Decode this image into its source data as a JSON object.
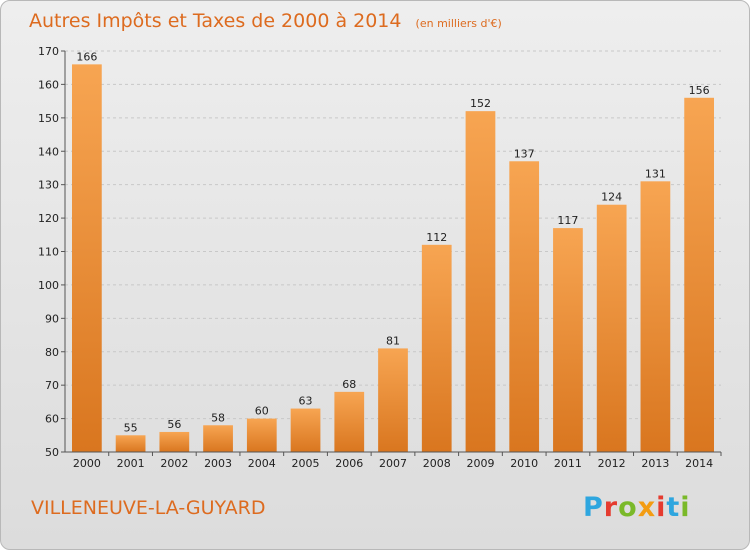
{
  "chart_data": {
    "type": "bar",
    "title": "Autres Impôts et Taxes de 2000 à 2014",
    "subtitle": "(en milliers d'€)",
    "categories": [
      "2000",
      "2001",
      "2002",
      "2003",
      "2004",
      "2005",
      "2006",
      "2007",
      "2008",
      "2009",
      "2010",
      "2011",
      "2012",
      "2013",
      "2014"
    ],
    "values": [
      166,
      55,
      56,
      58,
      60,
      63,
      68,
      81,
      112,
      152,
      137,
      117,
      124,
      131,
      156
    ],
    "ylim": [
      50,
      170
    ],
    "yticks": [
      50,
      60,
      70,
      80,
      90,
      100,
      110,
      120,
      130,
      140,
      150,
      160,
      170
    ],
    "grid": true,
    "legend": "none",
    "colors": {
      "bar_top": "#f7a552",
      "bar_bottom": "#d9761f",
      "accent_text": "#dd6b1f",
      "grid": "#c8c8c8"
    }
  },
  "footer": {
    "commune": "VILLENEUVE-LA-GUYARD",
    "logo": "Proxiti",
    "logo_colors": [
      "#2ea6df",
      "#e53b2f",
      "#7ab929",
      "#f39c12",
      "#e53b2f",
      "#2ea6df",
      "#7ab929"
    ]
  }
}
